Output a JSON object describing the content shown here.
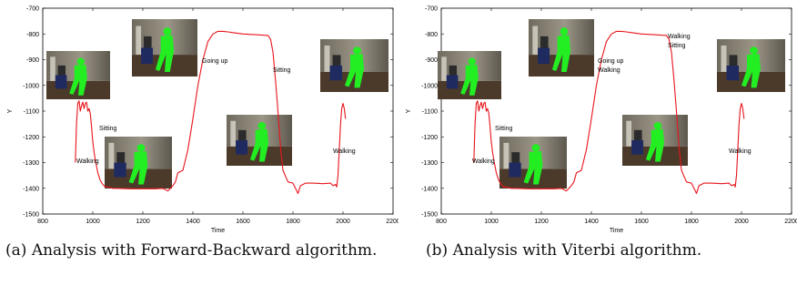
{
  "chart_data": [
    {
      "type": "line",
      "caption_label": "(a)",
      "caption_text": "Analysis with Forward-Backward algorithm.",
      "xlabel": "Time",
      "ylabel": "Y",
      "xlim": [
        800,
        2200
      ],
      "ylim": [
        -1500,
        -700
      ],
      "x_ticks": [
        800,
        1000,
        1200,
        1400,
        1600,
        1800,
        2000,
        2200
      ],
      "y_ticks": [
        -700,
        -800,
        -900,
        -1000,
        -1100,
        -1200,
        -1300,
        -1400,
        -1500
      ],
      "line_color": "#e8141b",
      "grid": false,
      "series": [
        {
          "x": [
            930,
            935,
            940,
            945,
            950,
            955,
            960,
            965,
            970,
            975,
            980,
            985,
            990,
            995,
            1000,
            1005,
            1010,
            1020,
            1030,
            1040,
            1050,
            1060,
            1080,
            1100,
            1150,
            1200,
            1250,
            1280,
            1300,
            1310,
            1320,
            1330,
            1340,
            1350,
            1360,
            1380,
            1400,
            1420,
            1440,
            1460,
            1480,
            1500,
            1520,
            1540,
            1560,
            1600,
            1650,
            1700,
            1710,
            1720,
            1730,
            1740,
            1750,
            1760,
            1780,
            1800,
            1810,
            1820,
            1830,
            1840,
            1850,
            1880,
            1920,
            1950,
            1960,
            1970,
            1975,
            1980,
            1985,
            1990,
            1995,
            2000,
            2005,
            2010
          ],
          "y": [
            -1300,
            -1150,
            -1070,
            -1060,
            -1100,
            -1080,
            -1065,
            -1090,
            -1070,
            -1065,
            -1100,
            -1090,
            -1110,
            -1160,
            -1220,
            -1260,
            -1290,
            -1340,
            -1370,
            -1385,
            -1395,
            -1395,
            -1400,
            -1400,
            -1402,
            -1402,
            -1402,
            -1400,
            -1410,
            -1400,
            -1390,
            -1375,
            -1340,
            -1335,
            -1330,
            -1250,
            -1130,
            -1000,
            -900,
            -830,
            -800,
            -790,
            -790,
            -792,
            -795,
            -800,
            -803,
            -806,
            -820,
            -870,
            -980,
            -1100,
            -1240,
            -1330,
            -1375,
            -1380,
            -1400,
            -1420,
            -1390,
            -1385,
            -1380,
            -1380,
            -1382,
            -1380,
            -1390,
            -1385,
            -1395,
            -1350,
            -1250,
            -1150,
            -1090,
            -1070,
            -1090,
            -1130
          ]
        }
      ],
      "annotations": [
        "Walking",
        "Sitting",
        "Going up",
        "Sitting",
        "Walking"
      ]
    },
    {
      "type": "line",
      "caption_label": "(b)",
      "caption_text": "Analysis with Viterbi algorithm.",
      "xlabel": "Time",
      "ylabel": "Y",
      "xlim": [
        800,
        2200
      ],
      "ylim": [
        -1500,
        -700
      ],
      "x_ticks": [
        800,
        1000,
        1200,
        1400,
        1600,
        1800,
        2000,
        2200
      ],
      "y_ticks": [
        -700,
        -800,
        -900,
        -1000,
        -1100,
        -1200,
        -1300,
        -1400,
        -1500
      ],
      "line_color": "#e8141b",
      "grid": false,
      "series": [
        {
          "x": [
            930,
            935,
            940,
            945,
            950,
            955,
            960,
            965,
            970,
            975,
            980,
            985,
            990,
            995,
            1000,
            1005,
            1010,
            1020,
            1030,
            1040,
            1050,
            1060,
            1080,
            1100,
            1150,
            1200,
            1250,
            1280,
            1300,
            1310,
            1320,
            1330,
            1340,
            1350,
            1360,
            1380,
            1400,
            1420,
            1440,
            1460,
            1480,
            1500,
            1520,
            1540,
            1560,
            1600,
            1650,
            1700,
            1710,
            1720,
            1730,
            1740,
            1750,
            1760,
            1780,
            1800,
            1810,
            1820,
            1830,
            1840,
            1850,
            1880,
            1920,
            1950,
            1960,
            1970,
            1975,
            1980,
            1985,
            1990,
            1995,
            2000,
            2005,
            2010
          ],
          "y": [
            -1300,
            -1150,
            -1070,
            -1060,
            -1100,
            -1080,
            -1065,
            -1090,
            -1070,
            -1065,
            -1100,
            -1090,
            -1110,
            -1160,
            -1220,
            -1260,
            -1290,
            -1340,
            -1370,
            -1385,
            -1395,
            -1395,
            -1400,
            -1400,
            -1402,
            -1402,
            -1402,
            -1400,
            -1410,
            -1400,
            -1390,
            -1375,
            -1340,
            -1335,
            -1330,
            -1250,
            -1130,
            -1000,
            -900,
            -830,
            -800,
            -790,
            -790,
            -792,
            -795,
            -800,
            -803,
            -806,
            -820,
            -870,
            -980,
            -1100,
            -1240,
            -1330,
            -1375,
            -1380,
            -1400,
            -1420,
            -1390,
            -1385,
            -1380,
            -1380,
            -1382,
            -1380,
            -1390,
            -1385,
            -1395,
            -1350,
            -1250,
            -1150,
            -1090,
            -1070,
            -1090,
            -1130
          ]
        }
      ],
      "annotations": [
        "Walking",
        "Sitting",
        "Going up",
        "Walking",
        "Walking",
        "Sitting",
        "Walking"
      ]
    }
  ]
}
